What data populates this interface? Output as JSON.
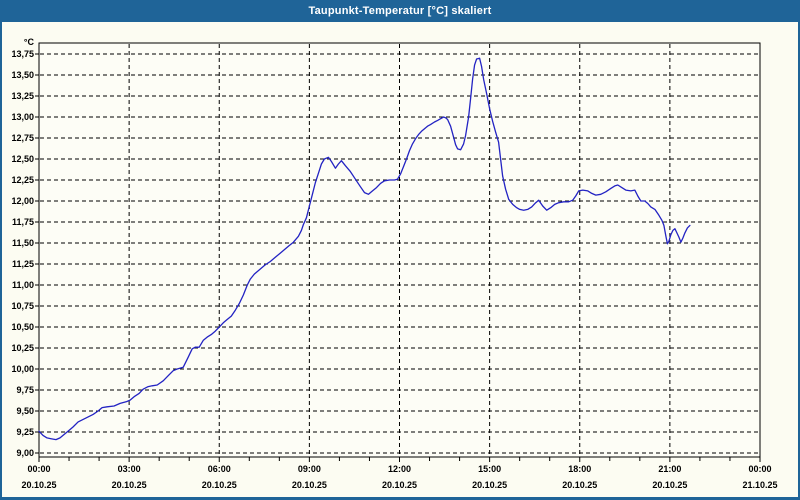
{
  "window": {
    "title": "Taupunkt-Temperatur [°C] skaliert",
    "titlebar_color": "#1f6498",
    "border_color": "#1f6498",
    "background_color": "#fcfcf2"
  },
  "chart_data": {
    "type": "line",
    "title": "Taupunkt-Temperatur [°C] skaliert",
    "ylabel": "°C",
    "decimal_separator": ",",
    "ylim": [
      8.95,
      13.89
    ],
    "y_tick_min": 9.0,
    "y_tick_max": 13.75,
    "y_tick_step": 0.25,
    "xlim_hours": [
      0,
      24
    ],
    "x_major_tick_hours": 3,
    "x_minor_tick_hours": 1,
    "grid": "dashed",
    "grid_color": "#000000",
    "plot_background": "#fdfdf6",
    "x_ticks": [
      {
        "time": "00:00",
        "date": "20.10.25"
      },
      {
        "time": "03:00",
        "date": "20.10.25"
      },
      {
        "time": "06:00",
        "date": "20.10.25"
      },
      {
        "time": "09:00",
        "date": "20.10.25"
      },
      {
        "time": "12:00",
        "date": "20.10.25"
      },
      {
        "time": "15:00",
        "date": "20.10.25"
      },
      {
        "time": "18:00",
        "date": "20.10.25"
      },
      {
        "time": "21:00",
        "date": "20.10.25"
      },
      {
        "time": "00:00",
        "date": "21.10.25"
      }
    ],
    "series": [
      {
        "name": "Taupunkt-Temperatur",
        "color": "#2323c3",
        "points_min_degC": [
          [
            0,
            9.26
          ],
          [
            8,
            9.21
          ],
          [
            16,
            9.18
          ],
          [
            24,
            9.17
          ],
          [
            34,
            9.16
          ],
          [
            42,
            9.18
          ],
          [
            48,
            9.21
          ],
          [
            58,
            9.26
          ],
          [
            68,
            9.31
          ],
          [
            78,
            9.37
          ],
          [
            88,
            9.4
          ],
          [
            98,
            9.43
          ],
          [
            108,
            9.46
          ],
          [
            118,
            9.5
          ],
          [
            126,
            9.54
          ],
          [
            136,
            9.55
          ],
          [
            150,
            9.56
          ],
          [
            162,
            9.59
          ],
          [
            174,
            9.61
          ],
          [
            182,
            9.63
          ],
          [
            190,
            9.67
          ],
          [
            200,
            9.71
          ],
          [
            208,
            9.76
          ],
          [
            218,
            9.79
          ],
          [
            226,
            9.8
          ],
          [
            236,
            9.81
          ],
          [
            248,
            9.86
          ],
          [
            258,
            9.92
          ],
          [
            268,
            9.98
          ],
          [
            276,
            10.0
          ],
          [
            288,
            10.02
          ],
          [
            298,
            10.14
          ],
          [
            306,
            10.24
          ],
          [
            312,
            10.26
          ],
          [
            320,
            10.26
          ],
          [
            328,
            10.34
          ],
          [
            336,
            10.38
          ],
          [
            344,
            10.41
          ],
          [
            352,
            10.45
          ],
          [
            360,
            10.5
          ],
          [
            368,
            10.55
          ],
          [
            376,
            10.59
          ],
          [
            384,
            10.63
          ],
          [
            392,
            10.7
          ],
          [
            400,
            10.78
          ],
          [
            408,
            10.88
          ],
          [
            416,
            11.0
          ],
          [
            422,
            11.07
          ],
          [
            430,
            11.13
          ],
          [
            440,
            11.18
          ],
          [
            452,
            11.24
          ],
          [
            462,
            11.28
          ],
          [
            472,
            11.33
          ],
          [
            482,
            11.38
          ],
          [
            492,
            11.43
          ],
          [
            500,
            11.47
          ],
          [
            508,
            11.51
          ],
          [
            518,
            11.58
          ],
          [
            524,
            11.65
          ],
          [
            528,
            11.72
          ],
          [
            534,
            11.8
          ],
          [
            540,
            11.94
          ],
          [
            546,
            12.08
          ],
          [
            552,
            12.22
          ],
          [
            558,
            12.33
          ],
          [
            564,
            12.44
          ],
          [
            570,
            12.5
          ],
          [
            578,
            12.52
          ],
          [
            584,
            12.47
          ],
          [
            592,
            12.39
          ],
          [
            598,
            12.44
          ],
          [
            604,
            12.48
          ],
          [
            612,
            12.42
          ],
          [
            622,
            12.35
          ],
          [
            632,
            12.26
          ],
          [
            642,
            12.17
          ],
          [
            650,
            12.1
          ],
          [
            658,
            12.08
          ],
          [
            666,
            12.12
          ],
          [
            674,
            12.16
          ],
          [
            682,
            12.21
          ],
          [
            690,
            12.24
          ],
          [
            700,
            12.25
          ],
          [
            710,
            12.25
          ],
          [
            716,
            12.26
          ],
          [
            722,
            12.32
          ],
          [
            728,
            12.41
          ],
          [
            734,
            12.5
          ],
          [
            740,
            12.6
          ],
          [
            746,
            12.68
          ],
          [
            752,
            12.74
          ],
          [
            758,
            12.79
          ],
          [
            764,
            12.83
          ],
          [
            770,
            12.86
          ],
          [
            776,
            12.89
          ],
          [
            782,
            12.91
          ],
          [
            790,
            12.94
          ],
          [
            796,
            12.96
          ],
          [
            802,
            12.98
          ],
          [
            808,
            13.0
          ],
          [
            812,
            12.99
          ],
          [
            816,
            12.97
          ],
          [
            822,
            12.89
          ],
          [
            828,
            12.76
          ],
          [
            832,
            12.67
          ],
          [
            836,
            12.62
          ],
          [
            842,
            12.61
          ],
          [
            848,
            12.68
          ],
          [
            852,
            12.78
          ],
          [
            858,
            13.0
          ],
          [
            862,
            13.22
          ],
          [
            866,
            13.45
          ],
          [
            870,
            13.62
          ],
          [
            874,
            13.69
          ],
          [
            880,
            13.7
          ],
          [
            884,
            13.6
          ],
          [
            888,
            13.45
          ],
          [
            894,
            13.28
          ],
          [
            900,
            13.1
          ],
          [
            906,
            12.95
          ],
          [
            912,
            12.82
          ],
          [
            918,
            12.7
          ],
          [
            922,
            12.5
          ],
          [
            926,
            12.3
          ],
          [
            932,
            12.14
          ],
          [
            938,
            12.02
          ],
          [
            946,
            11.96
          ],
          [
            954,
            11.92
          ],
          [
            960,
            11.9
          ],
          [
            968,
            11.89
          ],
          [
            976,
            11.9
          ],
          [
            984,
            11.93
          ],
          [
            992,
            11.98
          ],
          [
            998,
            12.01
          ],
          [
            1006,
            11.94
          ],
          [
            1014,
            11.89
          ],
          [
            1022,
            11.92
          ],
          [
            1030,
            11.96
          ],
          [
            1038,
            11.98
          ],
          [
            1048,
            11.99
          ],
          [
            1058,
            11.99
          ],
          [
            1066,
            12.01
          ],
          [
            1072,
            12.06
          ],
          [
            1078,
            12.12
          ],
          [
            1086,
            12.13
          ],
          [
            1096,
            12.12
          ],
          [
            1104,
            12.09
          ],
          [
            1112,
            12.07
          ],
          [
            1122,
            12.08
          ],
          [
            1132,
            12.11
          ],
          [
            1142,
            12.15
          ],
          [
            1150,
            12.18
          ],
          [
            1156,
            12.19
          ],
          [
            1164,
            12.16
          ],
          [
            1172,
            12.13
          ],
          [
            1182,
            12.12
          ],
          [
            1190,
            12.13
          ],
          [
            1196,
            12.06
          ],
          [
            1202,
            12.0
          ],
          [
            1210,
            12.0
          ],
          [
            1216,
            11.97
          ],
          [
            1222,
            11.93
          ],
          [
            1230,
            11.9
          ],
          [
            1238,
            11.83
          ],
          [
            1244,
            11.77
          ],
          [
            1248,
            11.71
          ],
          [
            1252,
            11.58
          ],
          [
            1255,
            11.49
          ],
          [
            1258,
            11.52
          ],
          [
            1262,
            11.6
          ],
          [
            1266,
            11.65
          ],
          [
            1270,
            11.67
          ],
          [
            1274,
            11.62
          ],
          [
            1278,
            11.57
          ],
          [
            1282,
            11.51
          ],
          [
            1286,
            11.56
          ],
          [
            1290,
            11.62
          ],
          [
            1295,
            11.68
          ],
          [
            1300,
            11.71
          ]
        ]
      }
    ]
  }
}
